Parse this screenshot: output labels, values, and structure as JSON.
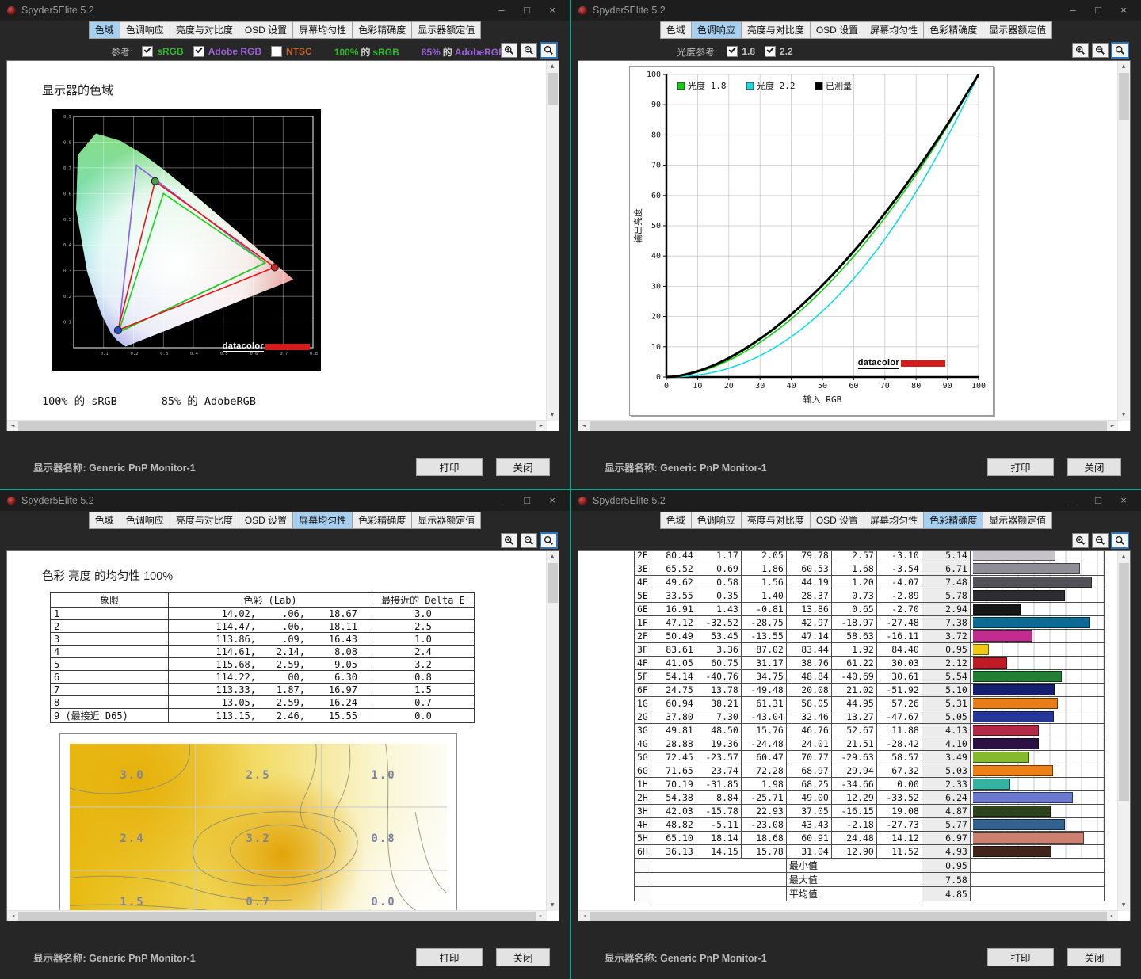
{
  "app": {
    "title": "Spyder5Elite 5.2"
  },
  "tabs": [
    "色域",
    "色调响应",
    "亮度与对比度",
    "OSD 设置",
    "屏幕均匀性",
    "色彩精确度",
    "显示器额定值"
  ],
  "footer": {
    "monitor": "显示器名称: Generic PnP Monitor-1",
    "print": "打印",
    "close": "关闭"
  },
  "windows": {
    "gamut": {
      "active_tab": 0,
      "toolbar": {
        "label": "参考:",
        "checks": [
          {
            "label": "sRGB",
            "checked": true,
            "color": "#2db82d"
          },
          {
            "label": "Adobe RGB",
            "checked": true,
            "color": "#9a5fd6"
          },
          {
            "label": "NTSC",
            "checked": false,
            "color": "#c0622b"
          }
        ],
        "extras": [
          {
            "pre": "100%",
            "mid": "的",
            "suf": "sRGB",
            "color": "#2db82d"
          },
          {
            "pre": "85%",
            "mid": "的",
            "suf": "AdobeRGB",
            "color": "#9a5fd6"
          }
        ]
      },
      "content_title": "显示器的色域",
      "summary": [
        "100% 的 sRGB",
        "85% 的 AdobeRGB"
      ],
      "chart_data": {
        "type": "scatter",
        "title": "显示器的色域",
        "xlim": [
          0,
          0.8
        ],
        "ylim": [
          0,
          0.9
        ],
        "tick_step": 0.1,
        "brand": "datacolor",
        "series": [
          {
            "name": "AdobeRGB",
            "color": "#8d5fe6",
            "points": [
              [
                0.64,
                0.33
              ],
              [
                0.21,
                0.71
              ],
              [
                0.15,
                0.06
              ]
            ]
          },
          {
            "name": "sRGB",
            "color": "#15d515",
            "points": [
              [
                0.64,
                0.33
              ],
              [
                0.3,
                0.6
              ],
              [
                0.15,
                0.06
              ]
            ]
          },
          {
            "name": "display",
            "color": "#e81414",
            "points": [
              [
                0.672,
                0.313
              ],
              [
                0.272,
                0.648
              ],
              [
                0.148,
                0.068
              ]
            ]
          }
        ],
        "markers": [
          {
            "xy": [
              0.272,
              0.648
            ],
            "color": "#4a9a4a"
          },
          {
            "xy": [
              0.672,
              0.313
            ],
            "color": "#cc2a2a"
          },
          {
            "xy": [
              0.148,
              0.068
            ],
            "color": "#2a50cc"
          }
        ]
      }
    },
    "tone": {
      "active_tab": 1,
      "toolbar": {
        "label": "光度参考:",
        "checks": [
          {
            "label": "1.8",
            "checked": true,
            "color": "#c4c4c4"
          },
          {
            "label": "2.2",
            "checked": true,
            "color": "#c4c4c4"
          }
        ],
        "extras": []
      },
      "chart_data": {
        "type": "line",
        "xlabel": "输入 RGB",
        "ylabel": "输出亮度",
        "xlim": [
          0,
          100
        ],
        "ylim": [
          0,
          100
        ],
        "tick_step": 10,
        "grid": true,
        "legend_position": "top-left",
        "brand": "datacolor",
        "series": [
          {
            "name": "光度 1.8",
            "gamma": 1.8,
            "color": "#0bd10b"
          },
          {
            "name": "光度 2.2",
            "gamma": 2.2,
            "color": "#12dede"
          },
          {
            "name": "已测量",
            "gamma": 1.72,
            "color": "#000000"
          }
        ]
      }
    },
    "uniformity": {
      "active_tab": 4,
      "content_title": "色彩 亮度 的均匀性 100%",
      "table": {
        "headers": [
          "象限",
          "色彩 (Lab)",
          "最接近的 Delta E"
        ],
        "rows": [
          [
            "1",
            "14.02",
            ".06",
            "18.67",
            "3.0"
          ],
          [
            "2",
            "114.47",
            ".06",
            "18.11",
            "2.5"
          ],
          [
            "3",
            "113.86",
            ".09",
            "16.43",
            "1.0"
          ],
          [
            "4",
            "114.61",
            "2.14",
            "8.08",
            "2.4"
          ],
          [
            "5",
            "115.68",
            "2.59",
            "9.05",
            "3.2"
          ],
          [
            "6",
            "114.22",
            "00",
            "6.30",
            "0.8"
          ],
          [
            "7",
            "113.33",
            "1.87",
            "16.97",
            "1.5"
          ],
          [
            "8",
            "13.05",
            "2.59",
            "16.24",
            "0.7"
          ],
          [
            "9 (最接近 D65)",
            "113.15",
            "2.46",
            "15.55",
            "0.0"
          ]
        ]
      },
      "chart_data": {
        "type": "heatmap",
        "grid": [
          [
            "3.0",
            "2.5",
            "1.0"
          ],
          [
            "2.4",
            "3.2",
            "0.8"
          ],
          [
            "1.5",
            "0.7",
            "0.0"
          ]
        ],
        "label_color": "#7d84a0"
      }
    },
    "accuracy": {
      "active_tab": 5,
      "chart_data": {
        "type": "table",
        "bar_xlim": [
          0,
          8
        ],
        "rows": [
          [
            "2E",
            "80.44",
            "1.17",
            "2.05",
            "79.78",
            "2.57",
            "-3.10",
            "5.14",
            "#c6c4ca"
          ],
          [
            "3E",
            "65.52",
            "0.69",
            "1.86",
            "60.53",
            "1.68",
            "-3.54",
            "6.71",
            "#8f8d95"
          ],
          [
            "4E",
            "49.62",
            "0.58",
            "1.56",
            "44.19",
            "1.20",
            "-4.07",
            "7.48",
            "#535159"
          ],
          [
            "5E",
            "33.55",
            "0.35",
            "1.40",
            "28.37",
            "0.73",
            "-2.89",
            "5.78",
            "#2d2d32"
          ],
          [
            "6E",
            "16.91",
            "1.43",
            "-0.81",
            "13.86",
            "0.65",
            "-2.70",
            "2.94",
            "#161617"
          ],
          [
            "1F",
            "47.12",
            "-32.52",
            "-28.75",
            "42.97",
            "-18.97",
            "-27.48",
            "7.38",
            "#0d6a92"
          ],
          [
            "2F",
            "50.49",
            "53.45",
            "-13.55",
            "47.14",
            "58.63",
            "-16.11",
            "3.72",
            "#c32b90"
          ],
          [
            "3F",
            "83.61",
            "3.36",
            "87.02",
            "83.44",
            "1.92",
            "84.40",
            "0.95",
            "#f0ca12"
          ],
          [
            "4F",
            "41.05",
            "60.75",
            "31.17",
            "38.76",
            "61.22",
            "30.03",
            "2.12",
            "#c01a25"
          ],
          [
            "5F",
            "54.14",
            "-40.76",
            "34.75",
            "48.84",
            "-40.69",
            "30.61",
            "5.54",
            "#217e34"
          ],
          [
            "6F",
            "24.75",
            "13.78",
            "-49.48",
            "20.08",
            "21.02",
            "-51.92",
            "5.10",
            "#151f70"
          ],
          [
            "1G",
            "60.94",
            "38.21",
            "61.31",
            "58.05",
            "44.95",
            "57.26",
            "5.31",
            "#e97d18"
          ],
          [
            "2G",
            "37.80",
            "7.30",
            "-43.04",
            "32.46",
            "13.27",
            "-47.67",
            "5.05",
            "#25389a"
          ],
          [
            "3G",
            "49.81",
            "48.50",
            "15.76",
            "46.76",
            "52.67",
            "11.88",
            "4.13",
            "#b42a46"
          ],
          [
            "4G",
            "28.88",
            "19.36",
            "-24.48",
            "24.01",
            "21.51",
            "-28.42",
            "4.10",
            "#2c1244"
          ],
          [
            "5G",
            "72.45",
            "-23.57",
            "60.47",
            "70.77",
            "-29.63",
            "58.57",
            "3.49",
            "#84ba2b"
          ],
          [
            "6G",
            "71.65",
            "23.74",
            "72.28",
            "68.97",
            "29.94",
            "67.32",
            "5.03",
            "#ef8015"
          ],
          [
            "1H",
            "70.19",
            "-31.85",
            "1.98",
            "68.25",
            "-34.66",
            "0.00",
            "2.33",
            "#36b2a1"
          ],
          [
            "2H",
            "54.38",
            "8.84",
            "-25.71",
            "49.00",
            "12.29",
            "-33.52",
            "6.24",
            "#6b7ace"
          ],
          [
            "3H",
            "42.03",
            "-15.78",
            "22.93",
            "37.05",
            "-16.15",
            "19.08",
            "4.87",
            "#2c431e"
          ],
          [
            "4H",
            "48.82",
            "-5.11",
            "-23.08",
            "43.43",
            "-2.18",
            "-27.73",
            "5.77",
            "#33618e"
          ],
          [
            "5H",
            "65.10",
            "18.14",
            "18.68",
            "60.91",
            "24.48",
            "14.12",
            "6.97",
            "#cd8070"
          ],
          [
            "6H",
            "36.13",
            "14.15",
            "15.78",
            "31.04",
            "12.90",
            "11.52",
            "4.93",
            "#41251b"
          ]
        ],
        "summary": [
          [
            "最小值",
            "0.95"
          ],
          [
            "最大值:",
            "7.58"
          ],
          [
            "平均值:",
            "4.85"
          ]
        ]
      }
    }
  }
}
